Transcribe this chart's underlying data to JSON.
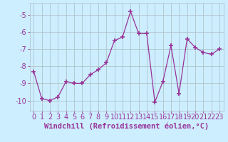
{
  "x": [
    0,
    1,
    2,
    3,
    4,
    5,
    6,
    7,
    8,
    9,
    10,
    11,
    12,
    13,
    14,
    15,
    16,
    17,
    18,
    19,
    20,
    21,
    22,
    23
  ],
  "y": [
    -8.3,
    -9.9,
    -10.0,
    -9.8,
    -8.9,
    -9.0,
    -9.0,
    -8.5,
    -8.2,
    -7.8,
    -6.5,
    -6.3,
    -4.8,
    -6.1,
    -6.1,
    -10.1,
    -8.9,
    -6.8,
    -9.6,
    -6.4,
    -6.9,
    -7.2,
    -7.3,
    -7.0
  ],
  "line_color": "#993399",
  "marker": "+",
  "marker_size": 4,
  "bg_color": "#cceeff",
  "grid_color": "#b0c4cc",
  "xlabel": "Windchill (Refroidissement éolien,°C)",
  "xlim": [
    -0.5,
    23.5
  ],
  "ylim": [
    -10.6,
    -4.3
  ],
  "yticks": [
    -10,
    -9,
    -8,
    -7,
    -6,
    -5
  ],
  "xticks": [
    0,
    1,
    2,
    3,
    4,
    5,
    6,
    7,
    8,
    9,
    10,
    11,
    12,
    13,
    14,
    15,
    16,
    17,
    18,
    19,
    20,
    21,
    22,
    23
  ],
  "label_color": "#993399",
  "tick_color": "#993399",
  "font_size_xlabel": 7.5,
  "font_size_ticks": 7
}
